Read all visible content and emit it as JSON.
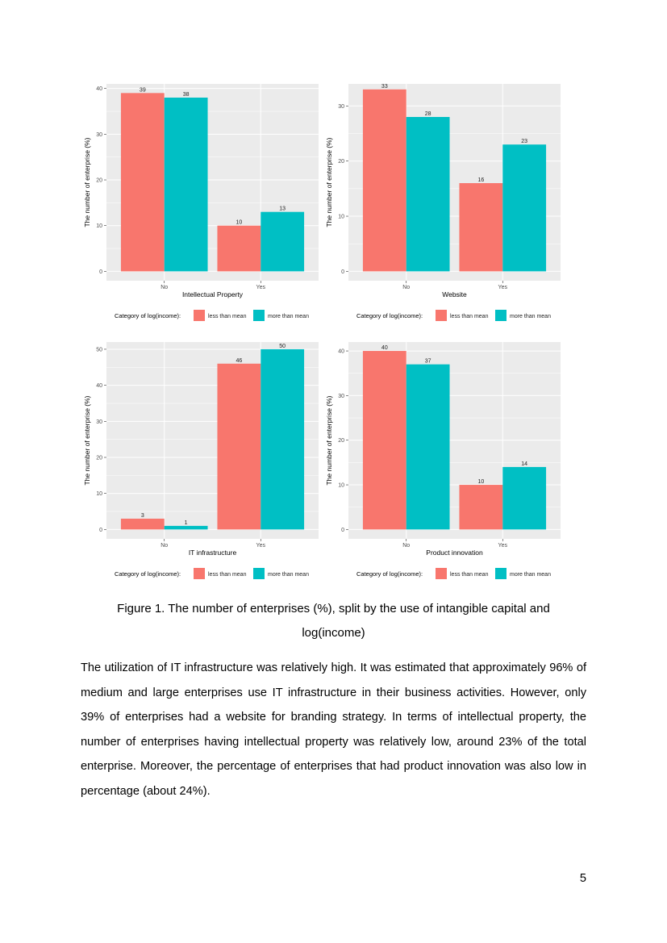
{
  "colors": {
    "less_than_mean": "#F8766D",
    "more_than_mean": "#00BFC4",
    "panel_bg": "#EBEBEB",
    "grid": "#FFFFFF"
  },
  "chart_data": [
    {
      "type": "bar",
      "xlabel": "Intellectual Property",
      "ylabel": "The number of enterprise (%)",
      "categories": [
        "No",
        "Yes"
      ],
      "yticks": [
        0,
        10,
        20,
        30,
        40
      ],
      "ylim": [
        0,
        41
      ],
      "grid": true,
      "legend_title": "Category of log(income):",
      "legend_position": "bottom",
      "series": [
        {
          "name": "less than mean",
          "values": [
            39,
            10
          ]
        },
        {
          "name": "more than mean",
          "values": [
            38,
            13
          ]
        }
      ]
    },
    {
      "type": "bar",
      "xlabel": "Website",
      "ylabel": "The number of enterprise (%)",
      "categories": [
        "No",
        "Yes"
      ],
      "yticks": [
        0,
        10,
        20,
        30
      ],
      "ylim": [
        0,
        34
      ],
      "grid": true,
      "legend_title": "Category of log(income):",
      "legend_position": "bottom",
      "series": [
        {
          "name": "less than mean",
          "values": [
            33,
            16
          ]
        },
        {
          "name": "more than mean",
          "values": [
            28,
            23
          ]
        }
      ]
    },
    {
      "type": "bar",
      "xlabel": "IT infrastructure",
      "ylabel": "The number of enterprise (%)",
      "categories": [
        "No",
        "Yes"
      ],
      "yticks": [
        0,
        10,
        20,
        30,
        40,
        50
      ],
      "ylim": [
        0,
        52
      ],
      "grid": true,
      "legend_title": "Category of log(income):",
      "legend_position": "bottom",
      "series": [
        {
          "name": "less than mean",
          "values": [
            3,
            46
          ]
        },
        {
          "name": "more than mean",
          "values": [
            1,
            50
          ]
        }
      ]
    },
    {
      "type": "bar",
      "xlabel": "Product innovation",
      "ylabel": "The number of enterprise (%)",
      "categories": [
        "No",
        "Yes"
      ],
      "yticks": [
        0,
        10,
        20,
        30,
        40
      ],
      "ylim": [
        0,
        42
      ],
      "grid": true,
      "legend_title": "Category of log(income):",
      "legend_position": "bottom",
      "series": [
        {
          "name": "less than mean",
          "values": [
            40,
            10
          ]
        },
        {
          "name": "more than mean",
          "values": [
            37,
            14
          ]
        }
      ]
    }
  ],
  "caption": {
    "line1": "Figure 1. The number of enterprises (%), split by the use of intangible capital and",
    "line2": "log(income)"
  },
  "paragraph": "The utilization of IT infrastructure was relatively high. It was estimated that approximately 96% of medium and large enterprises use IT infrastructure in their business activities. However, only 39% of enterprises had a website for branding strategy. In terms of intellectual property, the number of enterprises having intellectual property was relatively low, around 23% of the total enterprise. Moreover, the percentage of enterprises that had product innovation was also low in percentage (about 24%).",
  "page_number": "5"
}
